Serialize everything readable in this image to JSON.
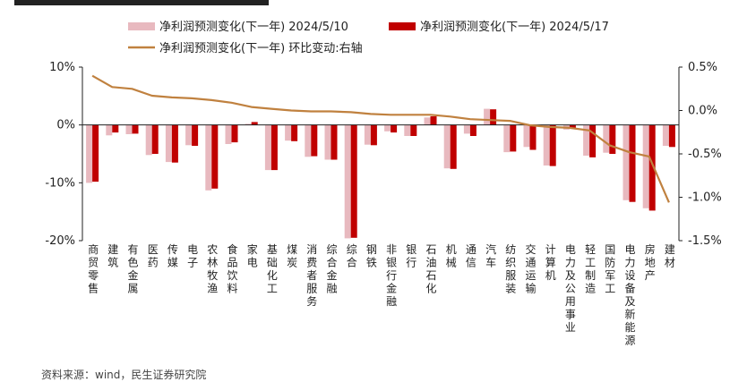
{
  "chart_data": {
    "type": "bar",
    "title": "",
    "categories": [
      "商贸零售",
      "建筑",
      "有色金属",
      "医药",
      "传媒",
      "电子",
      "农林牧渔",
      "食品饮料",
      "家电",
      "基础化工",
      "煤炭",
      "消费者服务",
      "综合金融",
      "综合",
      "钢铁",
      "非银行金融",
      "银行",
      "石油石化",
      "机械",
      "通信",
      "汽车",
      "纺织服装",
      "交通运输",
      "计算机",
      "电力及公用事业",
      "轻工制造",
      "国防军工",
      "电力设备及新能源",
      "房地产",
      "建材"
    ],
    "series": [
      {
        "name": "净利润预测变化(下一年) 2024/5/10",
        "type": "bar",
        "axis": "left",
        "color": "#E8B9BF",
        "values": [
          -10.0,
          -1.8,
          -1.6,
          -5.2,
          -6.4,
          -3.5,
          -11.3,
          -3.3,
          0.2,
          -7.8,
          -2.7,
          -5.5,
          -6.0,
          -19.6,
          -3.4,
          -1.1,
          -1.9,
          1.3,
          -7.5,
          -1.5,
          2.8,
          -4.7,
          -3.8,
          -7.0,
          -0.8,
          -5.3,
          -4.8,
          -13.0,
          -14.4,
          -3.6
        ]
      },
      {
        "name": "净利润预测变化(下一年) 2024/5/17",
        "type": "bar",
        "axis": "left",
        "color": "#C00000",
        "values": [
          -9.8,
          -1.3,
          -1.5,
          -5.0,
          -6.5,
          -3.6,
          -11.0,
          -3.0,
          0.5,
          -7.8,
          -2.8,
          -5.4,
          -6.0,
          -19.5,
          -3.5,
          -1.3,
          -1.9,
          1.5,
          -7.6,
          -1.9,
          2.7,
          -4.6,
          -4.3,
          -7.1,
          -0.6,
          -5.6,
          -5.0,
          -13.3,
          -14.8,
          -3.8
        ]
      },
      {
        "name": "净利润预测变化(下一年) 环比变动:右轴",
        "type": "line",
        "axis": "right",
        "color": "#C0813F",
        "values": [
          0.4,
          0.27,
          0.25,
          0.17,
          0.15,
          0.14,
          0.12,
          0.09,
          0.04,
          0.02,
          0.0,
          -0.01,
          -0.01,
          -0.02,
          -0.04,
          -0.05,
          -0.05,
          -0.05,
          -0.07,
          -0.1,
          -0.11,
          -0.12,
          -0.17,
          -0.19,
          -0.2,
          -0.23,
          -0.4,
          -0.48,
          -0.53,
          -1.06
        ]
      }
    ],
    "y_left": {
      "min": -20,
      "max": 10,
      "ticks": [
        10,
        0,
        -10,
        -20
      ],
      "tick_labels": [
        "10%",
        "0%",
        "-10%",
        "-20%"
      ]
    },
    "y_right": {
      "min": -1.5,
      "max": 0.5,
      "ticks": [
        0.5,
        0.0,
        -0.5,
        -1.0,
        -1.5
      ],
      "tick_labels": [
        "0.5%",
        "0.0%",
        "-0.5%",
        "-1.0%",
        "-1.5%"
      ]
    },
    "grid": false,
    "legend_position": "top"
  },
  "source_note": "资料来源：wind，民生证券研究院"
}
